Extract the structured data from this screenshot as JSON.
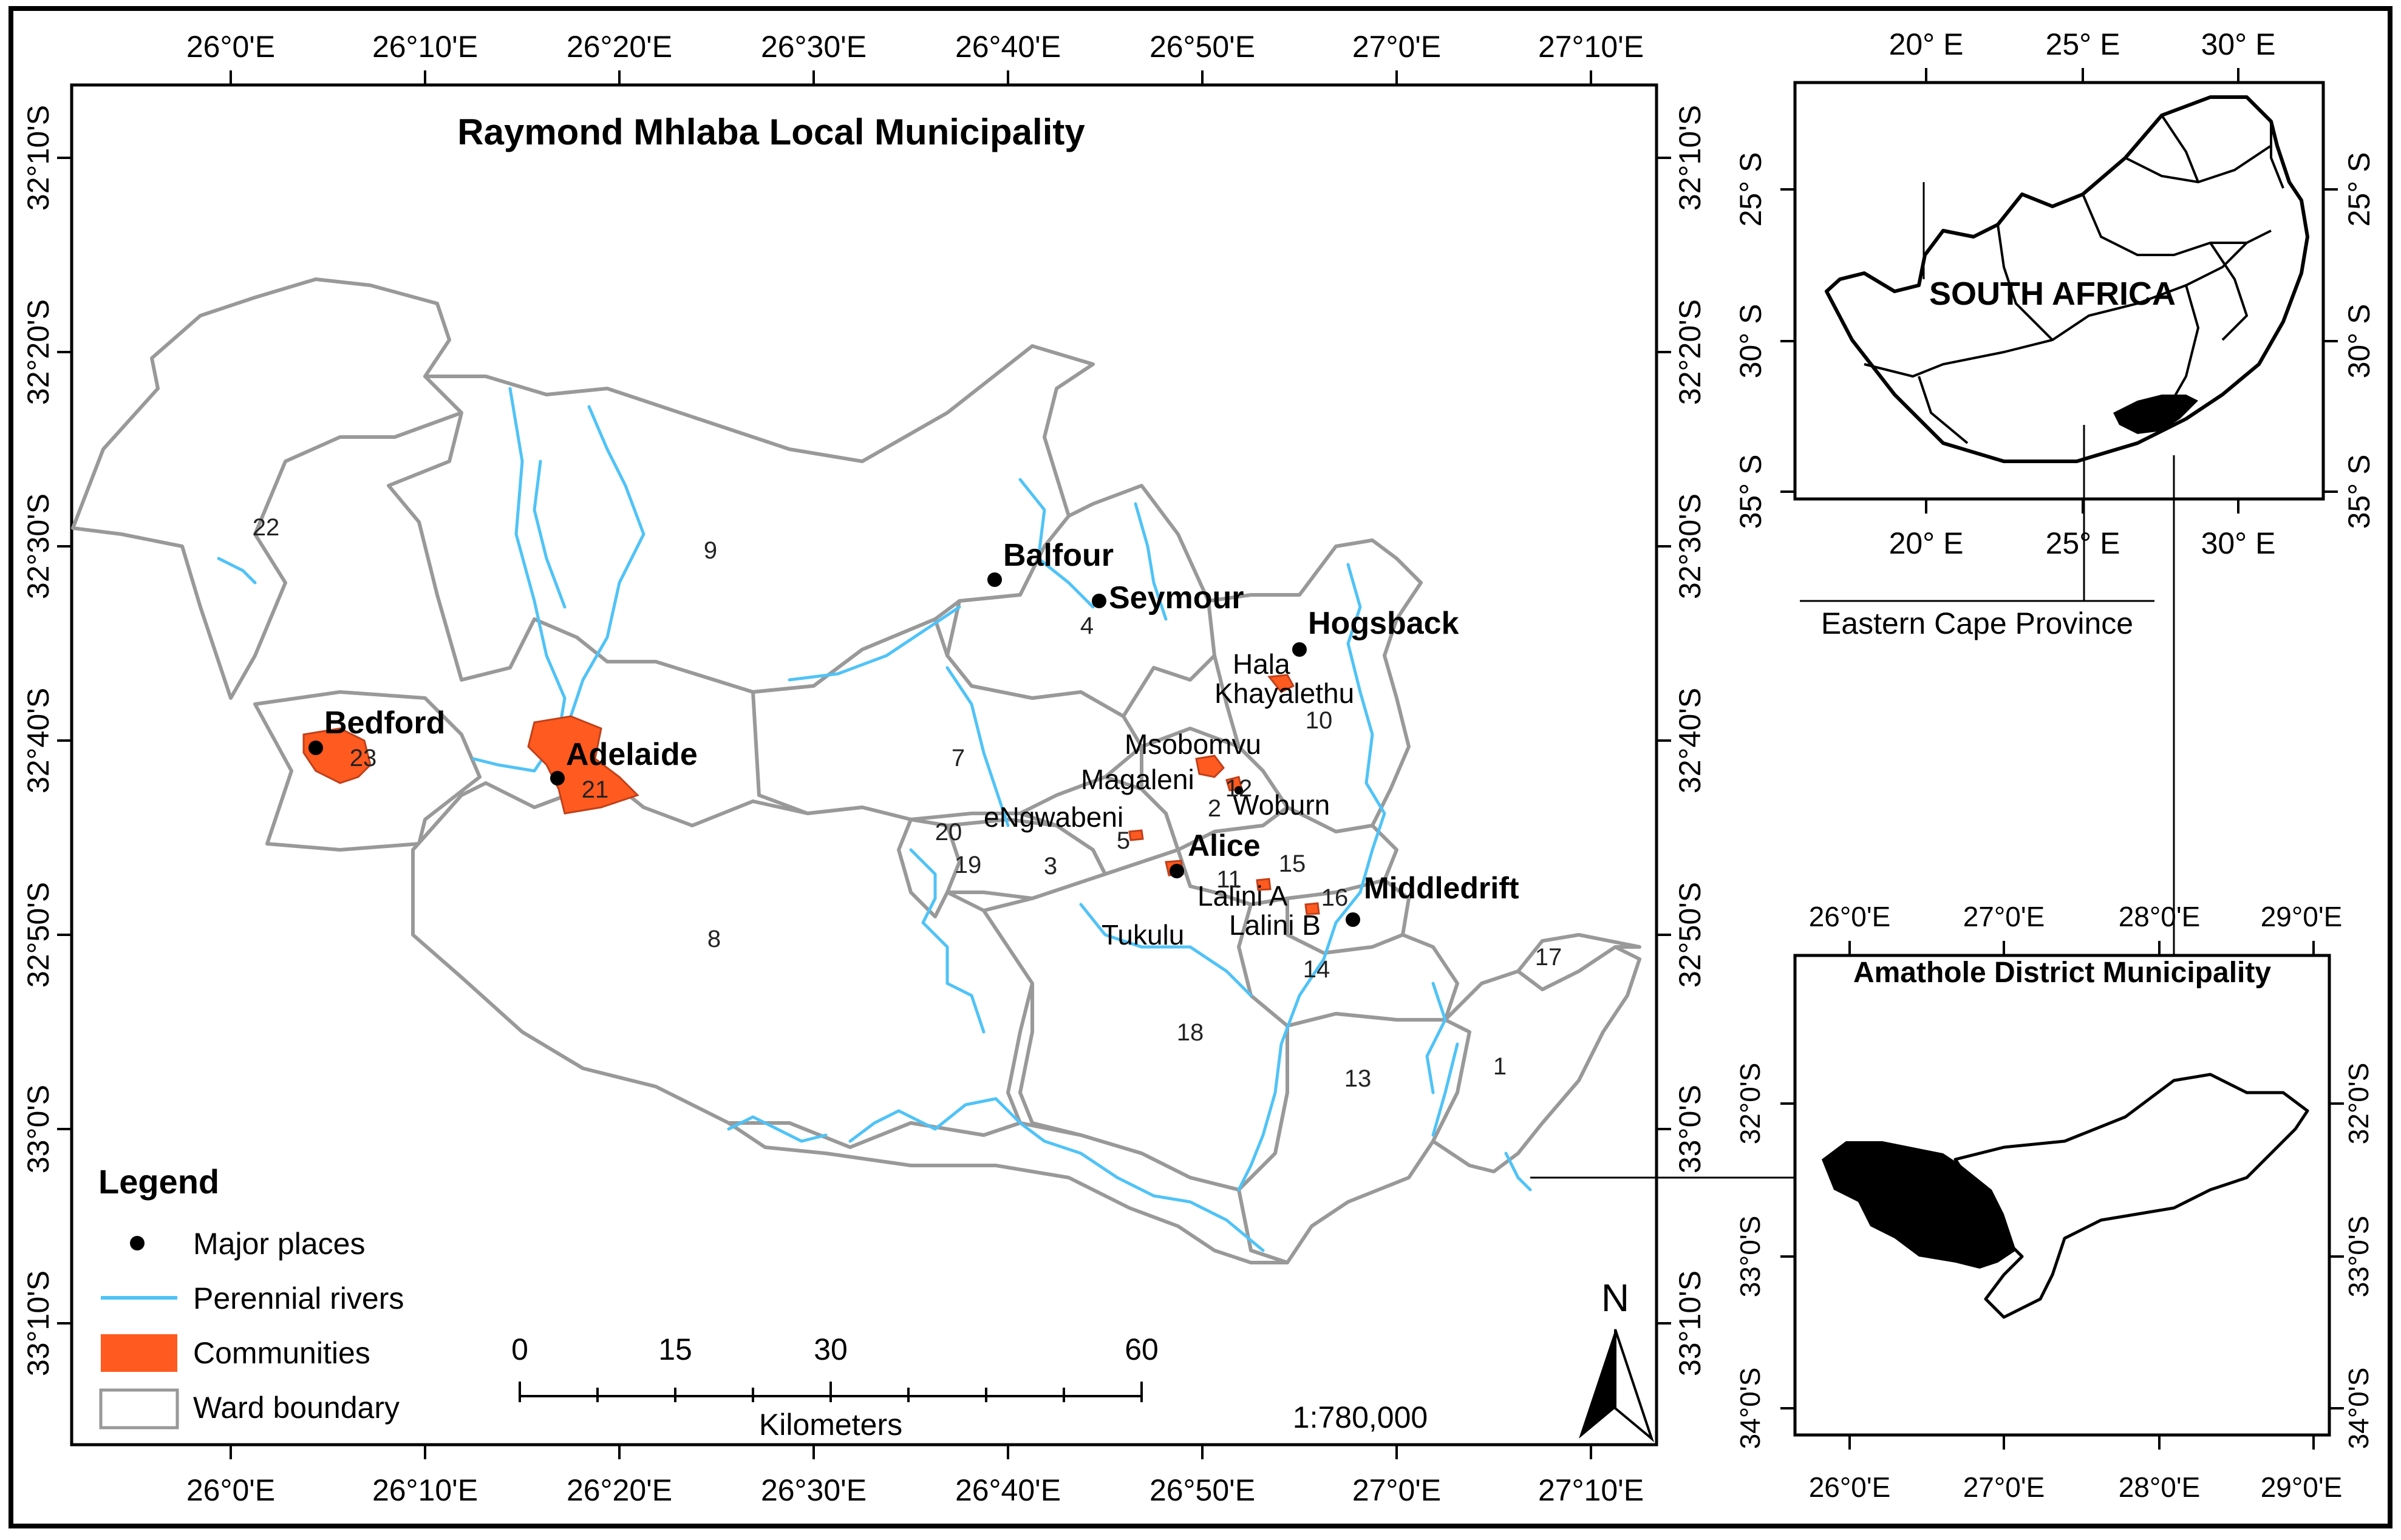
{
  "main_map": {
    "title": "Raymond Mhlaba Local Municipality",
    "lon_ticks": [
      "26°0'E",
      "26°10'E",
      "26°20'E",
      "26°30'E",
      "26°40'E",
      "26°50'E",
      "27°0'E",
      "27°10'E"
    ],
    "lat_ticks": [
      "32°10'S",
      "32°20'S",
      "32°30'S",
      "32°40'S",
      "32°50'S",
      "33°0'S",
      "33°10'S"
    ],
    "places": [
      {
        "name": "Balfour",
        "bold": true
      },
      {
        "name": "Seymour",
        "bold": true
      },
      {
        "name": "Hogsback",
        "bold": true
      },
      {
        "name": "Bedford",
        "bold": true
      },
      {
        "name": "Adelaide",
        "bold": true
      },
      {
        "name": "Alice",
        "bold": true
      },
      {
        "name": "Middledrift",
        "bold": true
      },
      {
        "name": "Hala",
        "bold": false
      },
      {
        "name": "Khayalethu",
        "bold": false
      },
      {
        "name": "Msobomvu",
        "bold": false
      },
      {
        "name": "Magaleni",
        "bold": false
      },
      {
        "name": "Woburn",
        "bold": false
      },
      {
        "name": "eNgwabeni",
        "bold": false
      },
      {
        "name": "Lalini A",
        "bold": false
      },
      {
        "name": "Lalini B",
        "bold": false
      },
      {
        "name": "Tukulu",
        "bold": false
      }
    ],
    "wards": [
      "1",
      "2",
      "3",
      "4",
      "5",
      "7",
      "8",
      "9",
      "10",
      "11",
      "12",
      "13",
      "14",
      "15",
      "16",
      "17",
      "18",
      "19",
      "20",
      "21",
      "22",
      "23"
    ],
    "legend": {
      "title": "Legend",
      "items": [
        "Major places",
        "Perennial rivers",
        "Communities",
        "Ward boundary"
      ]
    },
    "scale_bar": {
      "ticks": [
        "0",
        "15",
        "30",
        "60"
      ],
      "unit": "Kilometers",
      "ratio": "1:780,000"
    },
    "north": "N",
    "colors": {
      "river": "#4fc3f7",
      "community": "#ff5a1f",
      "ward_boundary": "#999999",
      "point": "#000000"
    }
  },
  "inset_sa": {
    "label": "SOUTH AFRICA",
    "caption": "Eastern Cape Province",
    "lon_ticks": [
      "20° E",
      "25° E",
      "30° E"
    ],
    "lat_ticks": [
      "25° S",
      "30° S",
      "35° S"
    ]
  },
  "inset_district": {
    "title": "Amathole District Municipality",
    "lon_ticks": [
      "26°0'E",
      "27°0'E",
      "28°0'E",
      "29°0'E"
    ],
    "lat_ticks": [
      "32°0'S",
      "33°0'S",
      "34°0'S"
    ]
  }
}
